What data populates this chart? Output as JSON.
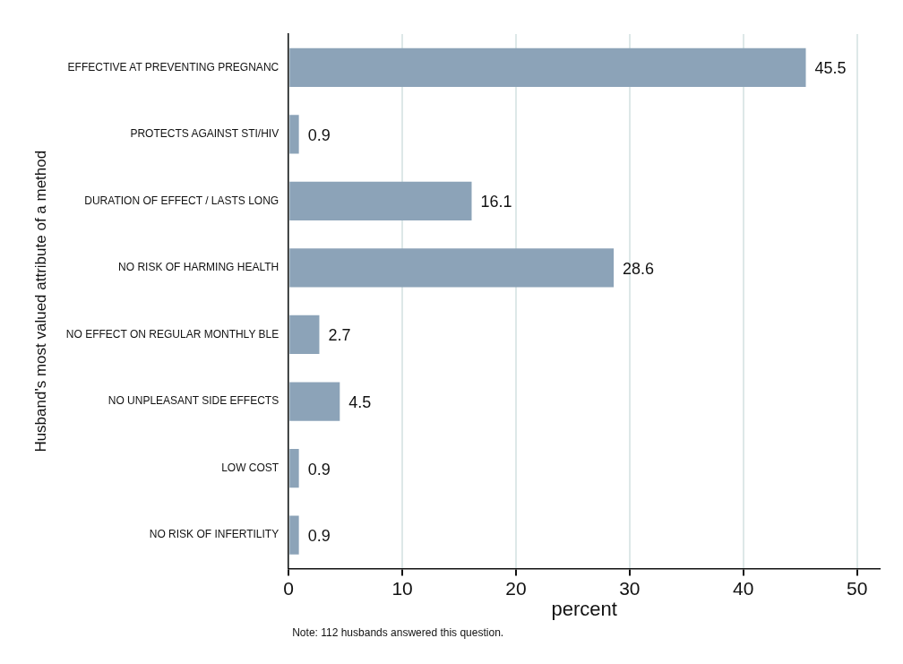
{
  "chart_data": {
    "type": "bar",
    "orientation": "horizontal",
    "xlabel": "percent",
    "ylabel": "Husband's most valued attribute of a method",
    "categories": [
      "EFFECTIVE AT PREVENTING PREGNANC",
      "PROTECTS AGAINST STI/HIV",
      "DURATION OF EFFECT / LASTS LONG",
      "NO RISK OF HARMING HEALTH",
      "NO EFFECT ON REGULAR MONTHLY BLE",
      "NO UNPLEASANT SIDE EFFECTS",
      "LOW COST",
      "NO RISK OF INFERTILITY"
    ],
    "values": [
      45.5,
      0.9,
      16.1,
      28.6,
      2.7,
      4.5,
      0.9,
      0.9
    ],
    "color": "#8ca3b8",
    "xlim": [
      0,
      52
    ],
    "xticks": [
      0,
      10,
      20,
      30,
      40,
      50
    ],
    "grid": "x",
    "data_labels": true,
    "legend": false,
    "annotations": [
      "Note: 112 husbands answered this question."
    ]
  }
}
